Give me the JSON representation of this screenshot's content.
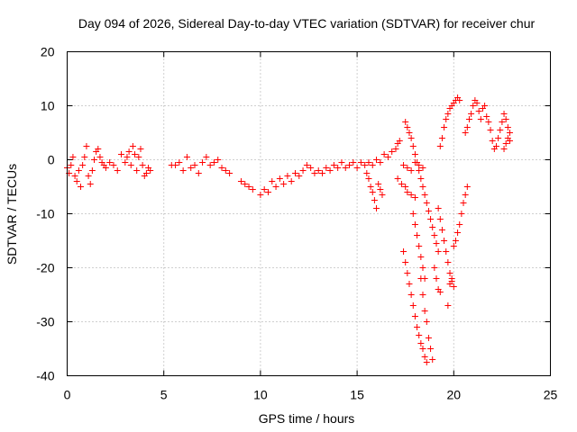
{
  "chart_data": {
    "type": "scatter",
    "title": "Day 094 of 2026, Sidereal Day-to-day VTEC variation (SDTVAR) for receiver chur",
    "xlabel": "GPS time / hours",
    "ylabel": "SDTVAR / TECUs",
    "xlim": [
      0,
      25
    ],
    "ylim": [
      -40,
      20
    ],
    "xticks": [
      0,
      5,
      10,
      15,
      20,
      25
    ],
    "yticks": [
      -40,
      -30,
      -20,
      -10,
      0,
      10,
      20
    ],
    "grid": true,
    "marker": "+",
    "color": "#ff0000",
    "series": [
      {
        "name": "SDTVAR",
        "x": [
          0.0,
          0.1,
          0.2,
          0.3,
          0.4,
          0.5,
          0.6,
          0.7,
          0.8,
          0.9,
          1.0,
          1.1,
          1.2,
          1.3,
          1.4,
          1.5,
          1.6,
          1.7,
          1.8,
          1.9,
          2.0,
          2.2,
          2.4,
          2.6,
          2.8,
          3.0,
          3.1,
          3.2,
          3.3,
          3.4,
          3.5,
          3.6,
          3.7,
          3.8,
          3.9,
          4.0,
          4.1,
          4.2,
          4.3,
          5.4,
          5.6,
          5.8,
          6.0,
          6.2,
          6.4,
          6.6,
          6.8,
          7.0,
          7.2,
          7.4,
          7.6,
          7.8,
          8.0,
          8.2,
          8.4,
          9.0,
          9.2,
          9.4,
          9.6,
          10.0,
          10.2,
          10.4,
          10.6,
          10.8,
          11.0,
          11.2,
          11.4,
          11.6,
          11.8,
          12.0,
          12.2,
          12.4,
          12.6,
          12.8,
          13.0,
          13.2,
          13.4,
          13.6,
          13.8,
          14.0,
          14.2,
          14.4,
          14.6,
          14.8,
          15.0,
          15.2,
          15.4,
          15.6,
          15.8,
          16.0,
          16.2,
          16.4,
          16.6,
          16.8,
          17.0,
          17.1,
          17.2,
          15.5,
          15.6,
          15.7,
          15.8,
          15.9,
          16.0,
          16.1,
          16.2,
          16.3,
          17.1,
          17.3,
          17.5,
          17.6,
          17.8,
          18.0,
          17.4,
          17.6,
          17.8,
          18.0,
          18.2,
          18.4,
          17.5,
          17.6,
          17.7,
          17.8,
          17.9,
          18.0,
          18.1,
          18.2,
          18.3,
          18.4,
          18.5,
          18.6,
          18.7,
          18.8,
          18.9,
          19.0,
          19.1,
          19.2,
          17.4,
          17.5,
          17.6,
          17.7,
          17.8,
          17.9,
          18.0,
          18.1,
          18.2,
          18.3,
          18.4,
          18.5,
          18.6,
          17.9,
          18.0,
          18.1,
          18.2,
          18.3,
          18.4,
          18.5,
          18.3,
          18.4,
          18.5,
          18.6,
          18.7,
          18.8,
          18.9,
          19.0,
          19.1,
          19.2,
          19.3,
          19.3,
          19.4,
          19.5,
          19.6,
          19.7,
          19.8,
          19.9,
          20.0,
          20.1,
          20.2,
          20.3,
          19.2,
          19.3,
          19.4,
          19.5,
          19.6,
          19.7,
          19.8,
          19.9,
          19.7,
          19.8,
          19.9,
          20.0,
          20.0,
          20.1,
          20.2,
          20.3,
          20.4,
          20.5,
          20.6,
          20.7,
          20.6,
          20.7,
          20.8,
          20.9,
          21.0,
          21.1,
          21.2,
          21.3,
          21.4,
          21.5,
          21.6,
          21.7,
          21.8,
          21.9,
          22.0,
          22.1,
          22.2,
          22.3,
          22.4,
          22.5,
          22.6,
          22.7,
          22.8,
          22.9,
          22.6,
          22.7,
          22.8,
          22.9
        ],
        "y": [
          -1.5,
          -2.5,
          -1.0,
          0.5,
          -3.0,
          -4.0,
          -2.0,
          -5.0,
          -1.0,
          0.5,
          2.5,
          -3.0,
          -4.5,
          -2.0,
          0.0,
          1.5,
          2.0,
          0.5,
          -0.5,
          -1.0,
          -1.5,
          -0.5,
          -1.0,
          -2.0,
          1.0,
          -0.5,
          0.5,
          1.5,
          -1.0,
          2.5,
          1.0,
          -2.0,
          0.5,
          2.0,
          -1.0,
          -3.0,
          -2.5,
          -1.5,
          -2.0,
          -1.0,
          -1.0,
          -0.5,
          -2.0,
          0.5,
          -1.5,
          -1.0,
          -2.5,
          -0.5,
          0.5,
          -1.0,
          -0.5,
          0.0,
          -1.5,
          -2.0,
          -2.5,
          -4.0,
          -4.5,
          -5.0,
          -5.5,
          -6.5,
          -5.5,
          -6.0,
          -4.0,
          -5.0,
          -3.5,
          -4.5,
          -3.0,
          -4.0,
          -2.5,
          -3.0,
          -2.0,
          -1.0,
          -1.5,
          -2.5,
          -2.0,
          -2.5,
          -1.5,
          -2.0,
          -1.0,
          -1.5,
          -0.5,
          -1.5,
          -1.0,
          -0.5,
          -1.5,
          -0.5,
          -1.0,
          -0.5,
          -1.0,
          0.0,
          -0.5,
          1.0,
          0.5,
          1.5,
          2.0,
          3.0,
          3.5,
          -2.5,
          -3.5,
          -5.0,
          -6.0,
          -7.5,
          -9.0,
          -4.5,
          -5.5,
          -6.5,
          -3.5,
          -4.5,
          -5.0,
          -6.0,
          -6.5,
          -7.0,
          -1.0,
          -1.5,
          -2.0,
          -0.5,
          -1.0,
          -1.5,
          7.0,
          6.0,
          5.0,
          4.0,
          2.5,
          1.0,
          -0.5,
          -2.0,
          -3.5,
          -5.0,
          -6.5,
          -8.0,
          -9.5,
          -11.0,
          -12.5,
          -14.0,
          -15.5,
          -17.0,
          -17.0,
          -19.0,
          -21.0,
          -23.0,
          -25.0,
          -27.0,
          -29.0,
          -31.0,
          -32.5,
          -34.0,
          -35.0,
          -36.5,
          -37.5,
          -10.0,
          -12.0,
          -14.0,
          -16.0,
          -18.0,
          -20.0,
          -22.0,
          -22.0,
          -25.0,
          -28.0,
          -30.0,
          -33.0,
          -35.0,
          -37.0,
          -20.0,
          -22.0,
          -24.0,
          -24.5,
          2.5,
          4.0,
          6.0,
          7.5,
          8.5,
          9.5,
          10.0,
          10.5,
          11.0,
          11.5,
          11.0,
          -9.0,
          -11.0,
          -13.0,
          -15.0,
          -17.0,
          -19.0,
          -21.0,
          -22.0,
          -27.0,
          -23.0,
          -22.5,
          -23.5,
          -16.0,
          -15.0,
          -13.5,
          -12.0,
          -10.0,
          -8.0,
          -6.5,
          -5.0,
          5.0,
          6.0,
          7.5,
          8.5,
          10.0,
          11.0,
          10.5,
          9.0,
          7.5,
          9.5,
          10.0,
          8.0,
          7.0,
          5.5,
          3.5,
          2.0,
          2.5,
          4.0,
          5.5,
          7.0,
          8.5,
          7.5,
          6.0,
          5.0,
          2.0,
          3.0,
          4.0,
          3.5
        ]
      }
    ]
  }
}
